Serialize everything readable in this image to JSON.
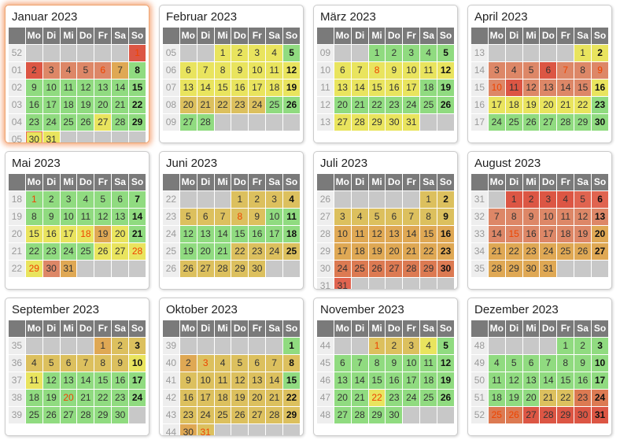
{
  "calendar": {
    "year": "2023",
    "weekday_headers": [
      "Mo",
      "Di",
      "Mi",
      "Do",
      "Fr",
      "Sa",
      "So"
    ],
    "colors": {
      "g": "#90db80",
      "y": "#e9e45e",
      "k": "#dcc05e",
      "o": "#dfa854",
      "s": "#dd8767",
      "t": "#dc7a52",
      "p": "#e06450",
      "r": "#dc5644",
      "empty_cell": "#c8c8c8",
      "holiday_text": "#ee4400",
      "header_bg": "#7a7a7a",
      "weeknum_bg": "#eeeeee",
      "weeknum_text": "#9a9a9a",
      "day_text": "#333333",
      "highlight_glow": "#f3945f",
      "today_border": "#e4694f"
    },
    "months": [
      {
        "title": "Januar 2023",
        "highlight": true,
        "weeks": [
          {
            "num": "52",
            "days": [
              "",
              "",
              "",
              "",
              "",
              "",
              "1:r:h"
            ]
          },
          {
            "num": "01",
            "days": [
              "2:r",
              "3:s",
              "4:s",
              "5:s",
              "6:s:h",
              "7:o",
              "8:g"
            ]
          },
          {
            "num": "02",
            "days": [
              "9:g",
              "10:g",
              "11:g",
              "12:g",
              "13:g",
              "14:g",
              "15:g"
            ]
          },
          {
            "num": "03",
            "days": [
              "16:g",
              "17:g",
              "18:g",
              "19:g",
              "20:g",
              "21:g",
              "22:g"
            ]
          },
          {
            "num": "04",
            "days": [
              "23:g",
              "24:g",
              "25:g",
              "26:g",
              "27:y",
              "28:g",
              "29:g"
            ]
          },
          {
            "num": "05",
            "days": [
              "30:y:t",
              "31:y",
              "",
              "",
              "",
              "",
              ""
            ]
          }
        ]
      },
      {
        "title": "Februar 2023",
        "highlight": false,
        "weeks": [
          {
            "num": "05",
            "days": [
              "",
              "",
              "1:y",
              "2:y",
              "3:y",
              "4:y",
              "5:g"
            ]
          },
          {
            "num": "06",
            "days": [
              "6:y",
              "7:y",
              "8:y",
              "9:y",
              "10:y",
              "11:y",
              "12:y"
            ]
          },
          {
            "num": "07",
            "days": [
              "13:y",
              "14:y",
              "15:y",
              "16:y",
              "17:y",
              "18:y",
              "19:y"
            ]
          },
          {
            "num": "08",
            "days": [
              "20:k",
              "21:k",
              "22:k",
              "23:k",
              "24:k",
              "25:g",
              "26:g"
            ]
          },
          {
            "num": "09",
            "days": [
              "27:g",
              "28:g",
              "",
              "",
              "",
              "",
              ""
            ]
          }
        ]
      },
      {
        "title": "März 2023",
        "highlight": false,
        "weeks": [
          {
            "num": "09",
            "days": [
              "",
              "",
              "1:g",
              "2:g",
              "3:g",
              "4:g",
              "5:g"
            ]
          },
          {
            "num": "10",
            "days": [
              "6:y",
              "7:y",
              "8:y:h",
              "9:y",
              "10:y",
              "11:y",
              "12:y"
            ]
          },
          {
            "num": "11",
            "days": [
              "13:y",
              "14:y",
              "15:y",
              "16:y",
              "17:y",
              "18:g",
              "19:g"
            ]
          },
          {
            "num": "12",
            "days": [
              "20:g",
              "21:g",
              "22:g",
              "23:g",
              "24:g",
              "25:g",
              "26:g"
            ]
          },
          {
            "num": "13",
            "days": [
              "27:y",
              "28:y",
              "29:y",
              "30:y",
              "31:y",
              "",
              ""
            ]
          }
        ]
      },
      {
        "title": "April 2023",
        "highlight": false,
        "weeks": [
          {
            "num": "13",
            "days": [
              "",
              "",
              "",
              "",
              "",
              "1:y",
              "2:y"
            ]
          },
          {
            "num": "14",
            "days": [
              "3:s",
              "4:s",
              "5:s",
              "6:r",
              "7:s:h",
              "8:s",
              "9:s:h"
            ]
          },
          {
            "num": "15",
            "days": [
              "10:s:h",
              "11:r",
              "12:s",
              "13:s",
              "14:s",
              "15:s",
              "16:y"
            ]
          },
          {
            "num": "16",
            "days": [
              "17:y",
              "18:y",
              "19:y",
              "20:y",
              "21:y",
              "22:y",
              "23:g"
            ]
          },
          {
            "num": "17",
            "days": [
              "24:g",
              "25:g",
              "26:g",
              "27:g",
              "28:g",
              "29:g",
              "30:g"
            ]
          }
        ]
      },
      {
        "title": "Mai 2023",
        "highlight": false,
        "weeks": [
          {
            "num": "18",
            "days": [
              "1:g:h",
              "2:g",
              "3:g",
              "4:g",
              "5:g",
              "6:g",
              "7:g"
            ]
          },
          {
            "num": "19",
            "days": [
              "8:g",
              "9:g",
              "10:g",
              "11:g",
              "12:g",
              "13:g",
              "14:g"
            ]
          },
          {
            "num": "20",
            "days": [
              "15:y",
              "16:y",
              "17:y",
              "18:y:h",
              "19:o",
              "20:y",
              "21:g"
            ]
          },
          {
            "num": "21",
            "days": [
              "22:g",
              "23:g",
              "24:g",
              "25:g",
              "26:y",
              "27:y",
              "28:y:h"
            ]
          },
          {
            "num": "22",
            "days": [
              "29:y:h",
              "30:s",
              "31:o",
              "",
              "",
              "",
              ""
            ]
          }
        ]
      },
      {
        "title": "Juni 2023",
        "highlight": false,
        "weeks": [
          {
            "num": "22",
            "days": [
              "",
              "",
              "",
              "1:k",
              "2:k",
              "3:k",
              "4:k"
            ]
          },
          {
            "num": "23",
            "days": [
              "5:k",
              "6:k",
              "7:k",
              "8:k:h",
              "9:k",
              "10:g",
              "11:g"
            ]
          },
          {
            "num": "24",
            "days": [
              "12:g",
              "13:g",
              "14:g",
              "15:g",
              "16:g",
              "17:g",
              "18:g"
            ]
          },
          {
            "num": "25",
            "days": [
              "19:g",
              "20:g",
              "21:g",
              "22:k",
              "23:k",
              "24:k",
              "25:k"
            ]
          },
          {
            "num": "26",
            "days": [
              "26:k",
              "27:k",
              "28:k",
              "29:k",
              "30:k",
              "",
              ""
            ]
          }
        ]
      },
      {
        "title": "Juli 2023",
        "highlight": false,
        "weeks": [
          {
            "num": "26",
            "days": [
              "",
              "",
              "",
              "",
              "",
              "1:k",
              "2:k"
            ]
          },
          {
            "num": "27",
            "days": [
              "3:k",
              "4:k",
              "5:k",
              "6:k",
              "7:k",
              "8:k",
              "9:k"
            ]
          },
          {
            "num": "28",
            "days": [
              "10:o",
              "11:o",
              "12:o",
              "13:o",
              "14:o",
              "15:o",
              "16:o"
            ]
          },
          {
            "num": "29",
            "days": [
              "17:o",
              "18:o",
              "19:o",
              "20:o",
              "21:o",
              "22:o",
              "23:o"
            ]
          },
          {
            "num": "30",
            "days": [
              "24:t",
              "25:t",
              "26:t",
              "27:t",
              "28:t",
              "29:t",
              "30:t"
            ]
          },
          {
            "num": "31",
            "days": [
              "31:p",
              "",
              "",
              "",
              "",
              "",
              ""
            ]
          }
        ]
      },
      {
        "title": "August 2023",
        "highlight": false,
        "weeks": [
          {
            "num": "31",
            "days": [
              "",
              "1:r",
              "2:r",
              "3:r",
              "4:r",
              "5:p",
              "6:p"
            ]
          },
          {
            "num": "32",
            "days": [
              "7:s",
              "8:s",
              "9:s",
              "10:s",
              "11:s",
              "12:s",
              "13:s"
            ]
          },
          {
            "num": "33",
            "days": [
              "14:s",
              "15:s:h",
              "16:s",
              "17:s",
              "18:s",
              "19:s",
              "20:o"
            ]
          },
          {
            "num": "34",
            "days": [
              "21:o",
              "22:o",
              "23:o",
              "24:o",
              "25:o",
              "26:o",
              "27:o"
            ]
          },
          {
            "num": "35",
            "days": [
              "28:o",
              "29:o",
              "30:o",
              "31:o",
              "",
              "",
              ""
            ]
          }
        ]
      },
      {
        "title": "September 2023",
        "highlight": false,
        "weeks": [
          {
            "num": "35",
            "days": [
              "",
              "",
              "",
              "",
              "1:o",
              "2:k",
              "3:k"
            ]
          },
          {
            "num": "36",
            "days": [
              "4:k",
              "5:k",
              "6:k",
              "7:k",
              "8:k",
              "9:k",
              "10:y"
            ]
          },
          {
            "num": "37",
            "days": [
              "11:y",
              "12:g",
              "13:g",
              "14:g",
              "15:g",
              "16:g",
              "17:g"
            ]
          },
          {
            "num": "38",
            "days": [
              "18:g",
              "19:g",
              "20:g:h",
              "21:g",
              "22:g",
              "23:g",
              "24:g"
            ]
          },
          {
            "num": "39",
            "days": [
              "25:g",
              "26:g",
              "27:g",
              "28:g",
              "29:g",
              "30:g",
              ""
            ]
          }
        ]
      },
      {
        "title": "Oktober 2023",
        "highlight": false,
        "weeks": [
          {
            "num": "39",
            "days": [
              "",
              "",
              "",
              "",
              "",
              "",
              "1:g"
            ]
          },
          {
            "num": "40",
            "days": [
              "2:o",
              "3:k:h",
              "4:k",
              "5:k",
              "6:k",
              "7:k",
              "8:k"
            ]
          },
          {
            "num": "41",
            "days": [
              "9:k",
              "10:k",
              "11:k",
              "12:k",
              "13:k",
              "14:k",
              "15:g"
            ]
          },
          {
            "num": "42",
            "days": [
              "16:k",
              "17:k",
              "18:k",
              "19:k",
              "20:k",
              "21:k",
              "22:k"
            ]
          },
          {
            "num": "43",
            "days": [
              "23:k",
              "24:k",
              "25:k",
              "26:k",
              "27:k",
              "28:k",
              "29:k"
            ]
          },
          {
            "num": "44",
            "days": [
              "30:o",
              "31:k:h",
              "",
              "",
              "",
              "",
              ""
            ]
          }
        ]
      },
      {
        "title": "November 2023",
        "highlight": false,
        "weeks": [
          {
            "num": "44",
            "days": [
              "",
              "",
              "1:k:h",
              "2:k",
              "3:k",
              "4:y",
              "5:g"
            ]
          },
          {
            "num": "45",
            "days": [
              "6:g",
              "7:g",
              "8:g",
              "9:g",
              "10:g",
              "11:g",
              "12:g"
            ]
          },
          {
            "num": "46",
            "days": [
              "13:g",
              "14:g",
              "15:g",
              "16:g",
              "17:g",
              "18:g",
              "19:g"
            ]
          },
          {
            "num": "47",
            "days": [
              "20:g",
              "21:g",
              "22:y:h",
              "23:g",
              "24:g",
              "25:g",
              "26:g"
            ]
          },
          {
            "num": "48",
            "days": [
              "27:g",
              "28:g",
              "29:g",
              "30:g",
              "",
              "",
              ""
            ]
          }
        ]
      },
      {
        "title": "Dezember 2023",
        "highlight": false,
        "weeks": [
          {
            "num": "48",
            "days": [
              "",
              "",
              "",
              "",
              "1:g",
              "2:g",
              "3:g"
            ]
          },
          {
            "num": "49",
            "days": [
              "4:g",
              "5:g",
              "6:g",
              "7:g",
              "8:g",
              "9:g",
              "10:g"
            ]
          },
          {
            "num": "50",
            "days": [
              "11:g",
              "12:g",
              "13:g",
              "14:g",
              "15:g",
              "16:g",
              "17:g"
            ]
          },
          {
            "num": "51",
            "days": [
              "18:g",
              "19:g",
              "20:g",
              "21:k",
              "22:k",
              "23:t",
              "24:t"
            ]
          },
          {
            "num": "52",
            "days": [
              "25:t:h",
              "26:t:h",
              "27:r",
              "28:r",
              "29:r",
              "30:r",
              "31:r"
            ]
          }
        ]
      }
    ]
  }
}
